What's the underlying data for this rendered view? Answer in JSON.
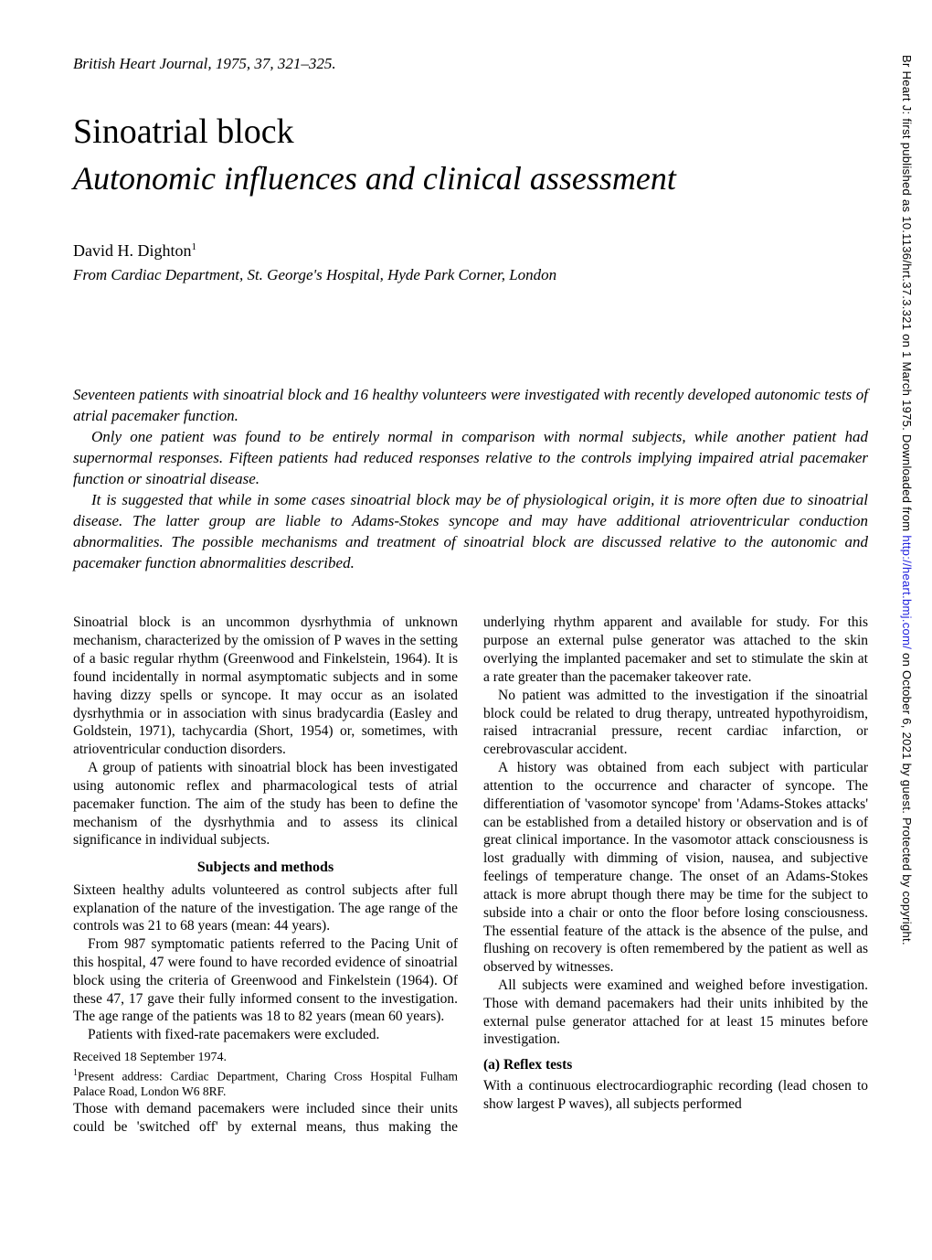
{
  "journal_header": "British Heart Journal, 1975, 37, 321–325.",
  "title_main": "Sinoatrial block",
  "title_sub": "Autonomic influences and clinical assessment",
  "author": "David H. Dighton",
  "author_super": "1",
  "affiliation": "From Cardiac Department, St. George's Hospital, Hyde Park Corner, London",
  "abstract": {
    "p1": "Seventeen patients with sinoatrial block and 16 healthy volunteers were investigated with recently developed autonomic tests of atrial pacemaker function.",
    "p2": "Only one patient was found to be entirely normal in comparison with normal subjects, while another patient had supernormal responses. Fifteen patients had reduced responses relative to the controls implying impaired atrial pacemaker function or sinoatrial disease.",
    "p3": "It is suggested that while in some cases sinoatrial block may be of physiological origin, it is more often due to sinoatrial disease. The latter group are liable to Adams-Stokes syncope and may have additional atrioventricular conduction abnormalities. The possible mechanisms and treatment of sinoatrial block are discussed relative to the autonomic and pacemaker function abnormalities described."
  },
  "body": {
    "intro1": "Sinoatrial block is an uncommon dysrhythmia of unknown mechanism, characterized by the omission of P waves in the setting of a basic regular rhythm (Greenwood and Finkelstein, 1964). It is found incidentally in normal asymptomatic subjects and in some having dizzy spells or syncope. It may occur as an isolated dysrhythmia or in association with sinus bradycardia (Easley and Goldstein, 1971), tachycardia (Short, 1954) or, sometimes, with atrioventricular conduction disorders.",
    "intro2": "A group of patients with sinoatrial block has been investigated using autonomic reflex and pharmacological tests of atrial pacemaker function. The aim of the study has been to define the mechanism of the dysrhythmia and to assess its clinical significance in individual subjects.",
    "methods_heading": "Subjects and methods",
    "methods1": "Sixteen healthy adults volunteered as control subjects after full explanation of the nature of the investigation. The age range of the controls was 21 to 68 years (mean: 44 years).",
    "methods2": "From 987 symptomatic patients referred to the Pacing Unit of this hospital, 47 were found to have recorded evidence of sinoatrial block using the criteria of Greenwood and Finkelstein (1964). Of these 47, 17 gave their fully informed consent to the investigation. The age range of the patients was 18 to 82 years (mean 60 years).",
    "methods3": "Patients with fixed-rate pacemakers were excluded.",
    "received": "Received 18 September 1974.",
    "footnote": "Present address: Cardiac Department, Charing Cross Hospital Fulham Palace Road, London W6 8RF.",
    "methods4": "Those with demand pacemakers were included since their units could be 'switched off' by external means, thus making the underlying rhythm apparent and available for study. For this purpose an external pulse generator was attached to the skin overlying the implanted pacemaker and set to stimulate the skin at a rate greater than the pacemaker takeover rate.",
    "methods5": "No patient was admitted to the investigation if the sinoatrial block could be related to drug therapy, untreated hypothyroidism, raised intracranial pressure, recent cardiac infarction, or cerebrovascular accident.",
    "methods6": "A history was obtained from each subject with particular attention to the occurrence and character of syncope. The differentiation of 'vasomotor syncope' from 'Adams-Stokes attacks' can be established from a detailed history or observation and is of great clinical importance. In the vasomotor attack consciousness is lost gradually with dimming of vision, nausea, and subjective feelings of temperature change. The onset of an Adams-Stokes attack is more abrupt though there may be time for the subject to subside into a chair or onto the floor before losing consciousness. The essential feature of the attack is the absence of the pulse, and flushing on recovery is often remembered by the patient as well as observed by witnesses.",
    "methods7": "All subjects were examined and weighed before investigation. Those with demand pacemakers had their units inhibited by the external pulse generator attached for at least 15 minutes before investigation.",
    "reflex_heading": "(a) Reflex tests",
    "reflex1": "With a continuous electrocardiographic recording (lead chosen to show largest P waves), all subjects performed"
  },
  "sidebar": {
    "prefix": "Br Heart J: first published as 10.1136/hrt.37.3.321 on 1 March 1975. Downloaded from ",
    "link": "http://heart.bmj.com/",
    "suffix": " on October 6, 2021 by guest. Protected by copyright."
  },
  "style": {
    "page_bg": "#ffffff",
    "text_color": "#000000",
    "link_color": "#2020dd",
    "body_font_size": 15.5,
    "abstract_font_size": 17,
    "title_font_size": 38,
    "subtitle_font_size": 36
  }
}
